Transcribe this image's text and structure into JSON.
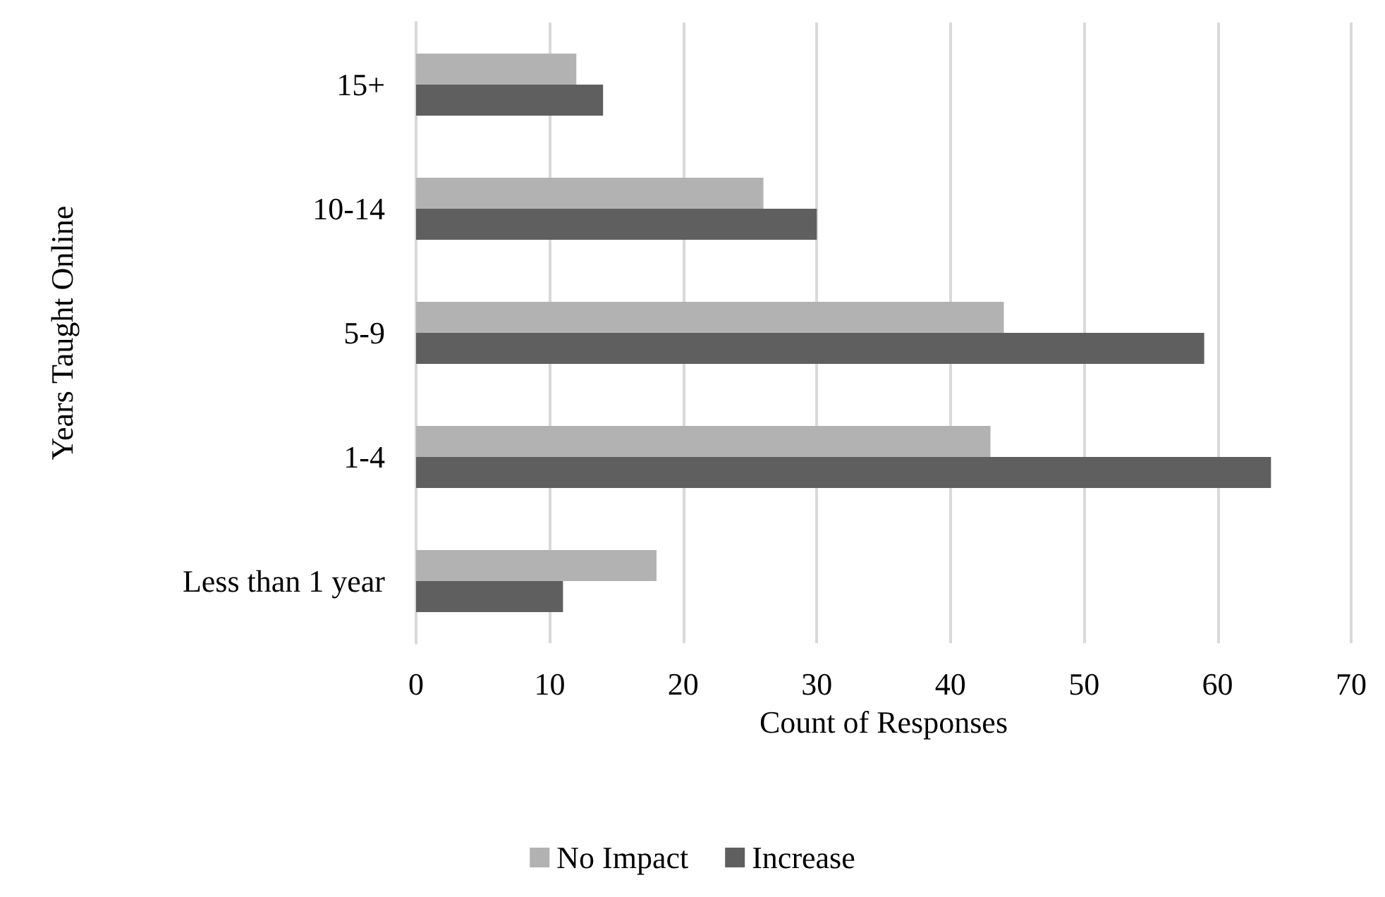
{
  "chart_data": {
    "type": "bar",
    "orientation": "horizontal",
    "xlabel": "Count of Responses",
    "ylabel": "Years Taught Online",
    "categories": [
      "15+",
      "10-14",
      "5-9",
      "1-4",
      "Less than 1 year"
    ],
    "series": [
      {
        "name": "No Impact",
        "color": "#b2b2b2",
        "values": [
          12,
          26,
          44,
          43,
          18
        ]
      },
      {
        "name": "Increase",
        "color": "#5f5f5f",
        "values": [
          14,
          30,
          59,
          64,
          11
        ]
      }
    ],
    "xlim": [
      0,
      70
    ],
    "xticks": [
      0,
      10,
      20,
      30,
      40,
      50,
      60,
      70
    ],
    "grid": "x",
    "legend": "bottom"
  }
}
